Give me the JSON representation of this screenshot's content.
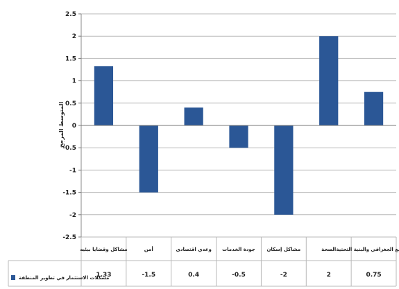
{
  "chart_data": {
    "type": "bar",
    "categories": [
      "مشاكل وقضايا بيئيه",
      "أمن",
      "وعدي اقتصادي",
      "جودة الخدمات",
      "مشاكل إسكان",
      "الصحة",
      "الموقع الجغرافي والبنية التحتية"
    ],
    "series": [
      {
        "name": "مشكلات الاستثمار في تطوير المنطقة",
        "values": [
          1.33,
          -1.5,
          0.4,
          -0.5,
          -2,
          2,
          0.75
        ]
      }
    ],
    "value_labels": [
      "1.33",
      "-1.5",
      "0.4",
      "-0.5",
      "-2",
      "2",
      "0.75"
    ],
    "ylim": [
      -2.5,
      2.5
    ],
    "yticks": [
      "2.5",
      "2",
      "1.5",
      "1",
      "0.5",
      "0",
      "-0.5",
      "-1",
      "-1.5",
      "-2",
      "-2.5"
    ],
    "ylabel": "المتوسط المرجح",
    "xlabel": "",
    "title": "",
    "grid": true,
    "legend": "bottom-left",
    "bar_color": "#2b5796"
  }
}
